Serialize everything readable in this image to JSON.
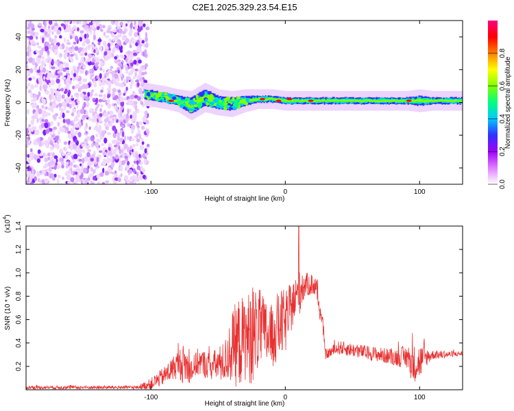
{
  "title": "C2E1.2025.329.23.54.E15",
  "chart_data": [
    {
      "type": "heatmap",
      "panel": "spectrogram",
      "xlabel": "Height of straight line (km)",
      "ylabel": "Frequency (Hz)",
      "xlim": [
        -193,
        132
      ],
      "ylim": [
        -50,
        50
      ],
      "xticks": [
        -100,
        0,
        100
      ],
      "xtick_labels": [
        "-100",
        "0",
        "100"
      ],
      "yticks": [
        -40,
        -20,
        0,
        20,
        40
      ],
      "ytick_labels": [
        "-40",
        "-20",
        "0",
        "20",
        "40"
      ],
      "noise_region_x": [
        -193,
        -102
      ],
      "signal_ridge": {
        "x": [
          -105,
          -90,
          -80,
          -70,
          -60,
          -50,
          -40,
          -30,
          -20,
          -10,
          0,
          10,
          20,
          40,
          60,
          80,
          90,
          100,
          110,
          132
        ],
        "freq": [
          5,
          3,
          1,
          -2,
          3,
          0,
          -1,
          1,
          2,
          2,
          1,
          1,
          1,
          1,
          1,
          1,
          1,
          1,
          1,
          1
        ],
        "half_width": [
          3,
          3,
          3,
          5,
          5,
          4,
          4,
          3,
          2,
          2,
          2,
          2,
          2,
          2,
          2,
          2,
          2,
          3,
          2,
          2
        ]
      },
      "colorbar": {
        "label": "Normalized spectral amplitude",
        "ticks": [
          0.0,
          0.2,
          0.4,
          0.6,
          0.8
        ],
        "tick_labels": [
          "0.0",
          "0.2",
          "0.4",
          "0.6",
          "0.8"
        ],
        "colors": [
          "#ffffff",
          "#e07fff",
          "#a000ff",
          "#3030ff",
          "#00c8ff",
          "#00ff80",
          "#80ff00",
          "#ffff00",
          "#ff8000",
          "#ff0000",
          "#ff0080"
        ]
      }
    },
    {
      "type": "line",
      "panel": "snr",
      "xlabel": "Height of straight line (km)",
      "ylabel": "SNR (10 * v/v)",
      "y_multiplier_label": "(x10",
      "y_multiplier_exp": "4",
      "color": "#e83030",
      "xlim": [
        -193,
        132
      ],
      "ylim": [
        0,
        1.4
      ],
      "xticks": [
        -100,
        0,
        100
      ],
      "xtick_labels": [
        "-100",
        "0",
        "100"
      ],
      "yticks": [
        0.2,
        0.4,
        0.6,
        0.8,
        1.0,
        1.2,
        1.4
      ],
      "ytick_labels": [
        "0.2",
        "0.4",
        "0.6",
        "0.8",
        "1.0",
        "1.2",
        "1.4"
      ],
      "envelope": {
        "x": [
          -193,
          -110,
          -100,
          -90,
          -80,
          -75,
          -70,
          -65,
          -55,
          -45,
          -40,
          -35,
          -30,
          -25,
          -20,
          -15,
          -10,
          -5,
          0,
          5,
          10,
          15,
          20,
          23,
          25,
          28,
          30,
          40,
          60,
          80,
          90,
          95,
          100,
          105,
          110,
          120,
          132
        ],
        "mean": [
          0.02,
          0.02,
          0.05,
          0.12,
          0.22,
          0.22,
          0.16,
          0.24,
          0.2,
          0.24,
          0.36,
          0.4,
          0.44,
          0.46,
          0.52,
          0.48,
          0.45,
          0.55,
          0.58,
          0.72,
          0.82,
          0.9,
          0.9,
          0.88,
          0.72,
          0.55,
          0.3,
          0.36,
          0.32,
          0.28,
          0.28,
          0.22,
          0.24,
          0.28,
          0.3,
          0.3,
          0.31
        ],
        "amp": [
          0.015,
          0.015,
          0.05,
          0.08,
          0.12,
          0.18,
          0.1,
          0.12,
          0.12,
          0.18,
          0.3,
          0.4,
          0.36,
          0.42,
          0.36,
          0.3,
          0.28,
          0.3,
          0.28,
          0.2,
          0.2,
          0.1,
          0.1,
          0.1,
          0.08,
          0.06,
          0.04,
          0.06,
          0.06,
          0.07,
          0.1,
          0.16,
          0.16,
          0.08,
          0.04,
          0.03,
          0.02
        ]
      },
      "peak": {
        "x": 10,
        "y": 1.4
      }
    }
  ]
}
